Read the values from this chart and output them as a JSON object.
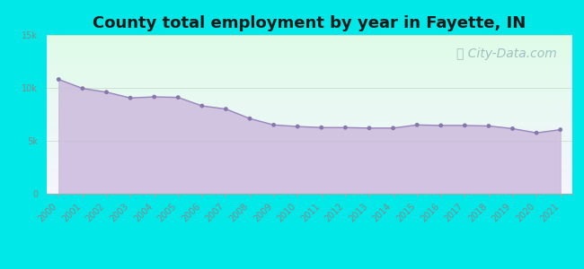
{
  "title": "County total employment by year in Fayette, IN",
  "title_fontsize": 13,
  "title_fontweight": "bold",
  "title_color": "#1a1a1a",
  "background_color": "#00e8e8",
  "plot_bg_top": "#dffce8",
  "plot_bg_bottom": "#f5f5ff",
  "fill_color": "#ccbbdd",
  "fill_alpha": 0.85,
  "line_color": "#9988bb",
  "line_width": 1.0,
  "marker_color": "#8877aa",
  "marker_size": 12,
  "years": [
    2000,
    2001,
    2002,
    2003,
    2004,
    2005,
    2006,
    2007,
    2008,
    2009,
    2010,
    2011,
    2012,
    2013,
    2014,
    2015,
    2016,
    2017,
    2018,
    2019,
    2020,
    2021
  ],
  "values": [
    10800,
    9950,
    9600,
    9050,
    9150,
    9100,
    8300,
    8000,
    7100,
    6500,
    6350,
    6250,
    6250,
    6200,
    6200,
    6500,
    6450,
    6450,
    6400,
    6150,
    5750,
    6050
  ],
  "ylim": [
    0,
    15000
  ],
  "yticks": [
    0,
    5000,
    10000,
    15000
  ],
  "ytick_labels": [
    "0",
    "5k",
    "10k",
    "15k"
  ],
  "grid_color": "#ccddcc",
  "grid_linewidth": 0.6,
  "watermark": "City-Data.com",
  "watermark_color": "#99bbbb",
  "watermark_fontsize": 10,
  "tick_label_color": "#888888",
  "tick_fontsize": 7,
  "spine_color": "#aaaaaa"
}
